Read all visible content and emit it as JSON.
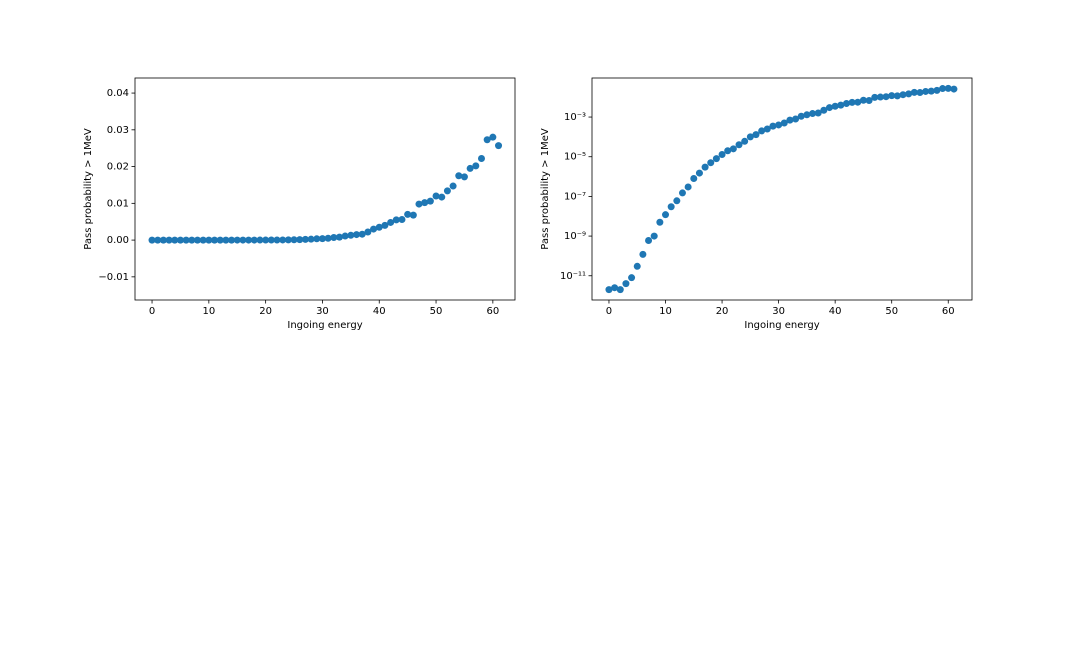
{
  "chart_data": [
    {
      "type": "scatter",
      "xlabel": "Ingoing energy",
      "ylabel": "Pass probability > 1MeV",
      "yscale": "linear",
      "color": "#1f77b4",
      "x": [
        0,
        1,
        2,
        3,
        4,
        5,
        6,
        7,
        8,
        9,
        10,
        11,
        12,
        13,
        14,
        15,
        16,
        17,
        18,
        19,
        20,
        21,
        22,
        23,
        24,
        25,
        26,
        27,
        28,
        29,
        30,
        31,
        32,
        33,
        34,
        35,
        36,
        37,
        38,
        39,
        40,
        41,
        42,
        43,
        44,
        45,
        46,
        47,
        48,
        49,
        50,
        51,
        52,
        53,
        54,
        55,
        56,
        57,
        58,
        59,
        60,
        61
      ],
      "values": [
        2e-12,
        2.5e-12,
        2e-12,
        4e-12,
        8e-12,
        3e-11,
        1.2e-10,
        6e-10,
        1e-09,
        5e-09,
        1.2e-08,
        3e-08,
        6e-08,
        1.5e-07,
        3e-07,
        8e-07,
        1.5e-06,
        3e-06,
        5e-06,
        8e-06,
        1.3e-05,
        2e-05,
        2.5e-05,
        4e-05,
        6e-05,
        0.0001,
        0.00013,
        0.0002,
        0.00025,
        0.00035,
        0.0004,
        0.0005,
        0.0007,
        0.0008,
        0.0011,
        0.0013,
        0.0015,
        0.0016,
        0.0022,
        0.003,
        0.0035,
        0.004,
        0.0048,
        0.0055,
        0.0056,
        0.007,
        0.0068,
        0.0098,
        0.0102,
        0.0106,
        0.012,
        0.0117,
        0.0134,
        0.0147,
        0.0175,
        0.0172,
        0.0195,
        0.0202,
        0.0222,
        0.0273,
        0.028,
        0.0257
      ],
      "xlim": [
        -3,
        63.9
      ],
      "xticks": [
        0,
        10,
        20,
        30,
        40,
        50,
        60
      ],
      "ylim": [
        -0.0163,
        0.0441
      ],
      "yticks": [
        {
          "value": -0.01,
          "label": "−0.01"
        },
        {
          "value": 0,
          "label": "0.00"
        },
        0.01,
        0.02,
        0.03,
        0.04
      ]
    },
    {
      "type": "scatter",
      "xlabel": "Ingoing energy",
      "ylabel": "Pass probability > 1MeV",
      "yscale": "log",
      "color": "#1f77b4",
      "x": [
        0,
        1,
        2,
        3,
        4,
        5,
        6,
        7,
        8,
        9,
        10,
        11,
        12,
        13,
        14,
        15,
        16,
        17,
        18,
        19,
        20,
        21,
        22,
        23,
        24,
        25,
        26,
        27,
        28,
        29,
        30,
        31,
        32,
        33,
        34,
        35,
        36,
        37,
        38,
        39,
        40,
        41,
        42,
        43,
        44,
        45,
        46,
        47,
        48,
        49,
        50,
        51,
        52,
        53,
        54,
        55,
        56,
        57,
        58,
        59,
        60,
        61
      ],
      "values": [
        2e-12,
        2.5e-12,
        2e-12,
        4e-12,
        8e-12,
        3e-11,
        1.2e-10,
        6e-10,
        1e-09,
        5e-09,
        1.2e-08,
        3e-08,
        6e-08,
        1.5e-07,
        3e-07,
        8e-07,
        1.5e-06,
        3e-06,
        5e-06,
        8e-06,
        1.3e-05,
        2e-05,
        2.5e-05,
        4e-05,
        6e-05,
        0.0001,
        0.00013,
        0.0002,
        0.00025,
        0.00035,
        0.0004,
        0.0005,
        0.0007,
        0.0008,
        0.0011,
        0.0013,
        0.0015,
        0.0016,
        0.0022,
        0.003,
        0.0035,
        0.004,
        0.0048,
        0.0055,
        0.0056,
        0.007,
        0.0068,
        0.0098,
        0.0102,
        0.0106,
        0.012,
        0.0117,
        0.0134,
        0.0147,
        0.0175,
        0.0172,
        0.0195,
        0.0202,
        0.0222,
        0.0273,
        0.028,
        0.0257
      ],
      "xlim": [
        -3,
        64.2
      ],
      "xticks": [
        0,
        10,
        20,
        30,
        40,
        50,
        60
      ],
      "ylim": [
        6e-13,
        0.093
      ],
      "yticks": [
        {
          "value": 1e-11,
          "label": "10⁻¹¹"
        },
        {
          "value": 1e-09,
          "label": "10⁻⁹"
        },
        {
          "value": 1e-07,
          "label": "10⁻⁷"
        },
        {
          "value": 1e-05,
          "label": "10⁻⁵"
        },
        {
          "value": 0.001,
          "label": "10⁻³"
        }
      ]
    }
  ]
}
